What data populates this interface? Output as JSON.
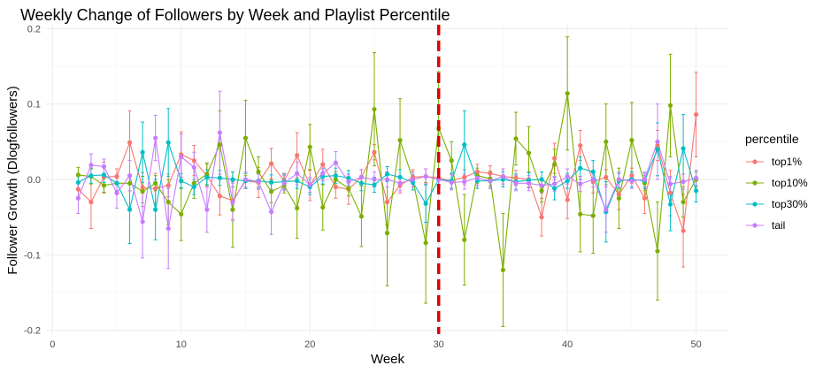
{
  "chart_data": {
    "type": "line",
    "title": "Weekly Change of Followers by Week and Playlist Percentile",
    "xlabel": "Week",
    "ylabel": "Follower Growth (Dlogfollowers)",
    "xlim": [
      -0.5,
      52.5
    ],
    "ylim": [
      -0.205,
      0.205
    ],
    "x_ticks": [
      0,
      10,
      20,
      30,
      40,
      50
    ],
    "y_ticks": [
      -0.2,
      -0.1,
      0.0,
      0.1,
      0.2
    ],
    "x_tick_labels": [
      "0",
      "10",
      "20",
      "30",
      "40",
      "50"
    ],
    "y_tick_labels": [
      "-0.2",
      "-0.1",
      "0.0",
      "0.1",
      "0.2"
    ],
    "grid": true,
    "legend": {
      "title": "percentile",
      "position": "right"
    },
    "vline": {
      "x": 30,
      "color": "#e00000",
      "style": "dashed"
    },
    "series": [
      {
        "name": "top1%",
        "color": "#F8766D",
        "x": [
          2,
          3,
          4,
          5,
          6,
          7,
          8,
          9,
          10,
          11,
          12,
          13,
          14,
          15,
          16,
          17,
          18,
          19,
          20,
          21,
          22,
          23,
          24,
          25,
          26,
          27,
          28,
          29,
          30,
          31,
          32,
          33,
          34,
          35,
          36,
          37,
          38,
          39,
          40,
          41,
          42,
          43,
          44,
          45,
          46,
          47,
          48,
          49,
          50
        ],
        "y": [
          -0.013,
          -0.03,
          0.003,
          0.004,
          0.049,
          -0.011,
          -0.012,
          -0.008,
          0.033,
          0.025,
          0.005,
          -0.022,
          -0.028,
          -0.002,
          -0.004,
          0.021,
          -0.002,
          0.032,
          -0.008,
          0.02,
          -0.01,
          -0.013,
          0.003,
          0.036,
          -0.03,
          -0.008,
          0.003,
          0.004,
          0.002,
          -0.002,
          0.003,
          0.01,
          0.008,
          0.004,
          0.002,
          0.0,
          -0.05,
          0.028,
          -0.027,
          0.045,
          -0.003,
          0.003,
          -0.02,
          0.005,
          -0.025,
          0.045,
          -0.018,
          -0.068,
          0.086
        ],
        "err": [
          0.01,
          0.035,
          0.02,
          0.01,
          0.042,
          0.02,
          0.02,
          0.015,
          0.03,
          0.02,
          0.015,
          0.025,
          0.025,
          0.01,
          0.02,
          0.02,
          0.01,
          0.03,
          0.02,
          0.02,
          0.015,
          0.02,
          0.01,
          0.01,
          0.03,
          0.01,
          0.01,
          0.01,
          0.01,
          0.01,
          0.01,
          0.01,
          0.01,
          0.01,
          0.01,
          0.01,
          0.025,
          0.02,
          0.025,
          0.02,
          0.015,
          0.01,
          0.02,
          0.01,
          0.02,
          0.02,
          0.03,
          0.048,
          0.056
        ]
      },
      {
        "name": "top10%",
        "color": "#7CAE00",
        "x": [
          2,
          3,
          4,
          5,
          6,
          7,
          8,
          9,
          10,
          11,
          12,
          13,
          14,
          15,
          16,
          17,
          18,
          19,
          20,
          21,
          22,
          23,
          24,
          25,
          26,
          27,
          28,
          29,
          30,
          31,
          32,
          33,
          34,
          35,
          36,
          37,
          38,
          39,
          40,
          41,
          42,
          43,
          44,
          45,
          46,
          47,
          48,
          49,
          50
        ],
        "y": [
          0.006,
          0.004,
          -0.008,
          -0.005,
          -0.005,
          -0.016,
          -0.005,
          -0.03,
          -0.046,
          -0.005,
          0.007,
          0.046,
          -0.04,
          0.055,
          0.01,
          -0.016,
          -0.008,
          -0.038,
          0.043,
          -0.037,
          0.0,
          -0.012,
          -0.049,
          0.093,
          -0.071,
          0.052,
          0.0,
          -0.084,
          0.068,
          0.025,
          -0.08,
          0.005,
          0.001,
          -0.12,
          0.054,
          0.035,
          -0.015,
          0.02,
          0.114,
          -0.046,
          -0.048,
          0.05,
          -0.025,
          0.052,
          -0.005,
          -0.095,
          0.098,
          -0.03,
          0.0
        ],
        "err": [
          0.01,
          0.01,
          0.01,
          0.01,
          0.01,
          0.02,
          0.01,
          0.03,
          0.035,
          0.02,
          0.015,
          0.045,
          0.05,
          0.05,
          0.02,
          0.015,
          0.01,
          0.04,
          0.03,
          0.03,
          0.01,
          0.01,
          0.04,
          0.075,
          0.07,
          0.055,
          0.01,
          0.08,
          0.075,
          0.025,
          0.06,
          0.01,
          0.01,
          0.075,
          0.035,
          0.035,
          0.015,
          0.02,
          0.075,
          0.05,
          0.05,
          0.05,
          0.04,
          0.05,
          0.01,
          0.065,
          0.068,
          0.02,
          0.01
        ]
      },
      {
        "name": "top30%",
        "color": "#00BFC4",
        "x": [
          2,
          3,
          4,
          5,
          6,
          7,
          8,
          9,
          10,
          11,
          12,
          13,
          14,
          15,
          16,
          17,
          18,
          19,
          20,
          21,
          22,
          23,
          24,
          25,
          26,
          27,
          28,
          29,
          30,
          31,
          32,
          33,
          34,
          35,
          36,
          37,
          38,
          39,
          40,
          41,
          42,
          43,
          44,
          45,
          46,
          47,
          48,
          49,
          50
        ],
        "y": [
          -0.004,
          0.005,
          0.006,
          -0.005,
          -0.04,
          0.036,
          -0.04,
          0.049,
          -0.002,
          -0.01,
          0.003,
          0.002,
          0.0,
          -0.002,
          -0.002,
          -0.004,
          -0.003,
          -0.002,
          -0.01,
          0.004,
          0.005,
          0.002,
          -0.005,
          -0.007,
          0.007,
          0.003,
          -0.004,
          -0.032,
          0.0,
          -0.002,
          0.046,
          -0.002,
          -0.002,
          0.0,
          -0.003,
          -0.001,
          0.0,
          -0.012,
          -0.002,
          0.015,
          0.01,
          -0.043,
          -0.002,
          0.0,
          -0.002,
          0.04,
          -0.033,
          0.041,
          -0.015
        ],
        "err": [
          0.01,
          0.01,
          0.01,
          0.01,
          0.045,
          0.04,
          0.04,
          0.045,
          0.01,
          0.01,
          0.01,
          0.01,
          0.01,
          0.01,
          0.01,
          0.01,
          0.01,
          0.01,
          0.01,
          0.01,
          0.01,
          0.01,
          0.01,
          0.01,
          0.01,
          0.01,
          0.01,
          0.025,
          0.01,
          0.01,
          0.045,
          0.01,
          0.01,
          0.01,
          0.01,
          0.01,
          0.01,
          0.015,
          0.01,
          0.015,
          0.015,
          0.04,
          0.01,
          0.01,
          0.01,
          0.035,
          0.035,
          0.045,
          0.015
        ]
      },
      {
        "name": "tail",
        "color": "#C77CFF",
        "x": [
          2,
          3,
          4,
          5,
          6,
          7,
          8,
          9,
          10,
          11,
          12,
          13,
          14,
          15,
          16,
          17,
          18,
          19,
          20,
          21,
          22,
          23,
          24,
          25,
          26,
          27,
          28,
          29,
          30,
          31,
          32,
          33,
          34,
          35,
          36,
          37,
          38,
          39,
          40,
          41,
          42,
          43,
          44,
          45,
          46,
          47,
          48,
          49,
          50
        ],
        "y": [
          -0.025,
          0.019,
          0.017,
          -0.018,
          0.005,
          -0.056,
          0.055,
          -0.065,
          0.03,
          0.016,
          -0.04,
          0.062,
          -0.03,
          0.0,
          -0.003,
          -0.043,
          -0.005,
          0.008,
          -0.007,
          0.008,
          0.022,
          -0.003,
          0.003,
          0.0,
          0.0,
          -0.005,
          0.0,
          0.004,
          0.0,
          -0.004,
          -0.003,
          0.002,
          -0.002,
          0.004,
          -0.005,
          -0.005,
          -0.008,
          -0.006,
          0.004,
          -0.006,
          0.0,
          -0.04,
          0.0,
          -0.002,
          0.0,
          0.05,
          -0.006,
          -0.003,
          0.002
        ],
        "err": [
          0.02,
          0.015,
          0.01,
          0.02,
          0.02,
          0.048,
          0.03,
          0.053,
          0.03,
          0.02,
          0.03,
          0.055,
          0.025,
          0.01,
          0.01,
          0.03,
          0.01,
          0.015,
          0.01,
          0.01,
          0.015,
          0.01,
          0.01,
          0.01,
          0.01,
          0.01,
          0.01,
          0.01,
          0.01,
          0.01,
          0.01,
          0.01,
          0.01,
          0.01,
          0.01,
          0.01,
          0.01,
          0.01,
          0.01,
          0.01,
          0.01,
          0.03,
          0.01,
          0.01,
          0.01,
          0.05,
          0.01,
          0.01,
          0.01
        ]
      }
    ]
  }
}
